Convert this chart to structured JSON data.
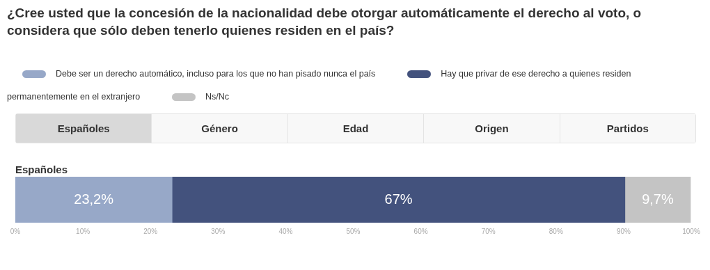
{
  "chart_data": {
    "type": "bar",
    "orientation": "horizontal",
    "stacked": true,
    "title": "¿Cree usted que la concesión de la nacionalidad debe otorgar automáticamente el derecho al voto, o considera que sólo deben tenerlo quienes residen en el país?",
    "categories": [
      "Españoles"
    ],
    "series": [
      {
        "name": "Debe ser un derecho automático, incluso para los que no han pisado nunca el país",
        "color": "#97a8c8",
        "values": [
          23.2
        ],
        "value_labels": [
          "23,2%"
        ]
      },
      {
        "name": "Hay que privar de ese derecho a quienes residen permanentemente en el extranjero",
        "color": "#43527d",
        "values": [
          67
        ],
        "value_labels": [
          "67%"
        ]
      },
      {
        "name": "Ns/Nc",
        "color": "#c4c4c4",
        "values": [
          9.7
        ],
        "value_labels": [
          "9,7%"
        ]
      }
    ],
    "xlim": [
      0,
      100
    ],
    "xticks": [
      {
        "value": 0,
        "label": "0%"
      },
      {
        "value": 10,
        "label": "10%"
      },
      {
        "value": 20,
        "label": "20%"
      },
      {
        "value": 30,
        "label": "30%"
      },
      {
        "value": 40,
        "label": "40%"
      },
      {
        "value": 50,
        "label": "50%"
      },
      {
        "value": 60,
        "label": "60%"
      },
      {
        "value": 70,
        "label": "70%"
      },
      {
        "value": 80,
        "label": "80%"
      },
      {
        "value": 90,
        "label": "90%"
      },
      {
        "value": 100,
        "label": "100%"
      }
    ],
    "legend": "top",
    "annotations": [
      "Españoles",
      "Género",
      "Edad",
      "Origen",
      "Partidos"
    ]
  }
}
